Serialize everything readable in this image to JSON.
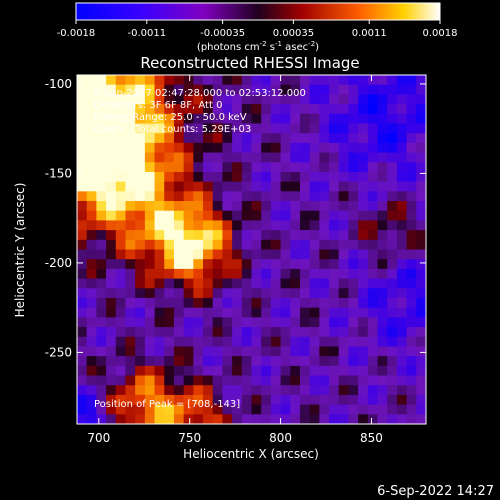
{
  "chart_data": {
    "type": "heatmap",
    "title": "Reconstructed RHESSI Image",
    "xlabel": "Heliocentric X (arcsec)",
    "ylabel": "Heliocentric Y (arcsec)",
    "xlim": [
      688,
      880
    ],
    "ylim": [
      -290,
      -95
    ],
    "xticks": [
      700,
      750,
      800,
      850
    ],
    "yticks": [
      -100,
      -150,
      -200,
      -250
    ],
    "colorbar": {
      "range": [
        -0.0018,
        0.0018
      ],
      "ticks": [
        "-0.0018",
        "-0.0011",
        "-0.00035",
        "0.00035",
        "0.0011",
        "0.0018"
      ],
      "units_main": "(photons cm",
      "units_sup1": "-2",
      "units_mid1": " s",
      "units_sup2": "-1",
      "units_mid2": " asec",
      "units_sup3": "-2",
      "units_end": ")"
    },
    "annotations": [
      "8-Sep-2017 02:47:28.000 to 02:53:12.000",
      "Detectors: 3F 6F 8F, Att 0",
      "Energy Range: 25.0 - 50.0 keV",
      "Clean    Total counts: 5.29E+03"
    ],
    "peak_label": "Position of Peak = [708,-143]",
    "peak": [
      708,
      -143
    ]
  },
  "footer": {
    "timestamp": "6-Sep-2022 14:27"
  },
  "colors": {
    "background": "#000000",
    "foreground": "#ffffff"
  }
}
